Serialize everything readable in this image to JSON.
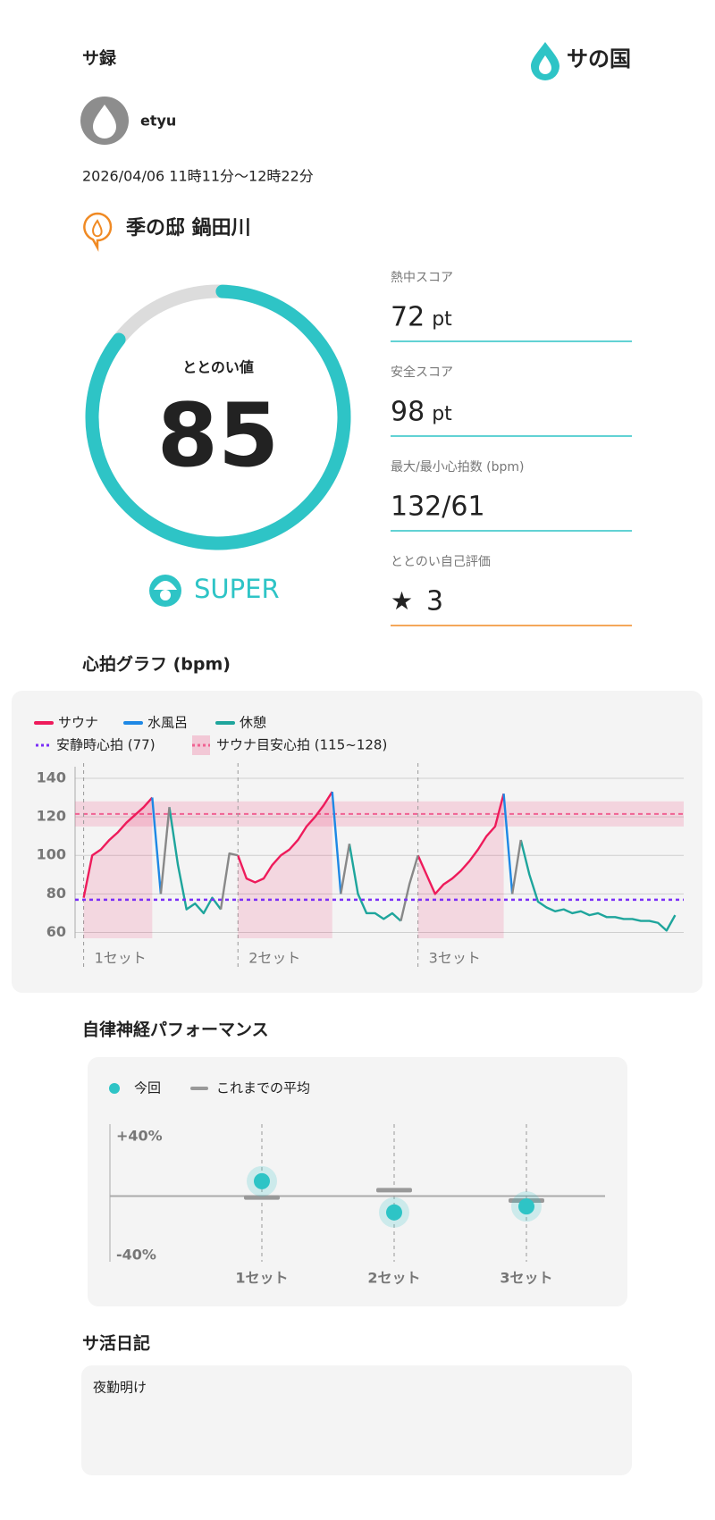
{
  "header": {
    "title": "サ録",
    "logo": "サの国"
  },
  "user": {
    "name": "etyu"
  },
  "session": {
    "datetime": "2026/04/06 11時11分〜12時22分"
  },
  "facility": {
    "name": "季の邸 鍋田川"
  },
  "gauge": {
    "label": "ととのい値",
    "value": 85,
    "range": [
      0,
      100
    ],
    "rank": "SUPER"
  },
  "stats": [
    {
      "label": "熱中スコア",
      "value": 72,
      "unit": "pt"
    },
    {
      "label": "安全スコア",
      "value": 98,
      "unit": "pt"
    },
    {
      "label": "最大/最小心拍数 (bpm)",
      "value": "132/61"
    },
    {
      "label": "ととのい自己評価",
      "icon": "★",
      "value": 3
    }
  ],
  "sections": {
    "heart": "心拍グラフ (bpm)",
    "autonomic": "自律神経パフォーマンス"
  },
  "diary": {
    "title": "サ活日記",
    "text": "夜勤明け"
  },
  "chart_data": [
    {
      "type": "line",
      "x": [
        1,
        2,
        3,
        4,
        5,
        6,
        7,
        8,
        9,
        10,
        11,
        12,
        13,
        14,
        15,
        16,
        17,
        18,
        19,
        20,
        21,
        22,
        23,
        24,
        25,
        26,
        27,
        28,
        29,
        30,
        31,
        32,
        33,
        34,
        35,
        36,
        37,
        38,
        39,
        40,
        41,
        42,
        43,
        44,
        45,
        46,
        47,
        48,
        49,
        50,
        51,
        52,
        53,
        54,
        55,
        56,
        57,
        58,
        59,
        60,
        61,
        62,
        63,
        64,
        65,
        66,
        67,
        68,
        69,
        70
      ],
      "xlim": [
        0,
        71
      ],
      "ylim": [
        57,
        146
      ],
      "yticks": [
        60,
        80,
        100,
        120,
        140
      ],
      "grid": true,
      "series": [
        {
          "name": "サウナ",
          "color": "#ee1b5b",
          "area": true,
          "values": [
            78,
            100,
            103,
            108,
            112,
            117,
            121,
            125,
            130,
            null,
            null,
            null,
            null,
            null,
            null,
            null,
            null,
            null,
            100,
            88,
            86,
            88,
            95,
            100,
            103,
            108,
            115,
            120,
            126,
            133,
            null,
            null,
            null,
            null,
            null,
            null,
            null,
            null,
            null,
            100,
            90,
            80,
            85,
            88,
            92,
            97,
            103,
            110,
            115,
            132,
            null,
            null,
            null,
            null,
            null,
            null,
            null,
            null,
            null,
            null,
            null,
            null,
            null,
            null,
            null,
            null,
            null,
            null,
            null,
            null
          ]
        },
        {
          "name": "水風呂",
          "color": "#1e88e5",
          "values": [
            null,
            null,
            null,
            null,
            null,
            null,
            null,
            null,
            130,
            80,
            null,
            null,
            null,
            null,
            null,
            null,
            null,
            null,
            null,
            null,
            null,
            null,
            null,
            null,
            null,
            null,
            null,
            null,
            null,
            133,
            80,
            null,
            null,
            null,
            null,
            null,
            null,
            null,
            null,
            null,
            null,
            null,
            null,
            null,
            null,
            null,
            null,
            null,
            null,
            132,
            80,
            null,
            null,
            null,
            null,
            null,
            null,
            null,
            null,
            null,
            null,
            null,
            null,
            null,
            null,
            null,
            null,
            null,
            null,
            null
          ]
        },
        {
          "name": "休憩",
          "color": "#1ea59c",
          "values": [
            null,
            null,
            null,
            null,
            null,
            null,
            null,
            null,
            null,
            null,
            125,
            95,
            72,
            75,
            70,
            78,
            72,
            null,
            null,
            null,
            null,
            null,
            null,
            null,
            null,
            null,
            null,
            null,
            null,
            null,
            null,
            106,
            80,
            70,
            70,
            67,
            70,
            66,
            null,
            null,
            null,
            null,
            null,
            null,
            null,
            null,
            null,
            null,
            null,
            null,
            null,
            108,
            90,
            76,
            73,
            71,
            72,
            70,
            71,
            69,
            70,
            68,
            68,
            67,
            67,
            66,
            66,
            65,
            61,
            69
          ]
        },
        {
          "color": "#888888",
          "values": [
            null,
            null,
            null,
            null,
            null,
            null,
            null,
            null,
            null,
            80,
            125,
            null,
            null,
            null,
            null,
            null,
            72,
            101,
            100,
            null,
            null,
            null,
            null,
            null,
            null,
            null,
            null,
            null,
            null,
            null,
            80,
            106,
            null,
            null,
            null,
            null,
            null,
            66,
            85,
            100,
            null,
            null,
            null,
            null,
            null,
            null,
            null,
            null,
            null,
            null,
            80,
            108,
            null,
            null,
            null,
            null,
            null,
            null,
            null,
            null,
            null,
            null,
            null,
            null,
            null,
            null,
            null,
            null,
            null,
            null
          ]
        }
      ],
      "reference_line": {
        "name": "安静時心拍 (77)",
        "value": 77,
        "color": "#7b2ff7"
      },
      "band": {
        "name": "サウナ目安心拍 (115~128)",
        "range": [
          115,
          128
        ],
        "color": "#f06292"
      },
      "sets": [
        {
          "label": "1セット",
          "x": 1
        },
        {
          "label": "2セット",
          "x": 19
        },
        {
          "label": "3セット",
          "x": 40
        }
      ]
    },
    {
      "type": "dot",
      "categories": [
        "1セット",
        "2セット",
        "3セット"
      ],
      "ylim": [
        -40,
        40
      ],
      "yticks": [
        {
          "value": 40,
          "label": "+40%"
        },
        {
          "value": -40,
          "label": "-40%"
        }
      ],
      "series": [
        {
          "name": "今回",
          "color": "#2ec4c6",
          "values": [
            10,
            -11,
            -7
          ]
        },
        {
          "name": "これまでの平均",
          "color": "#999999",
          "values": [
            -1,
            4,
            -3
          ]
        }
      ]
    }
  ]
}
